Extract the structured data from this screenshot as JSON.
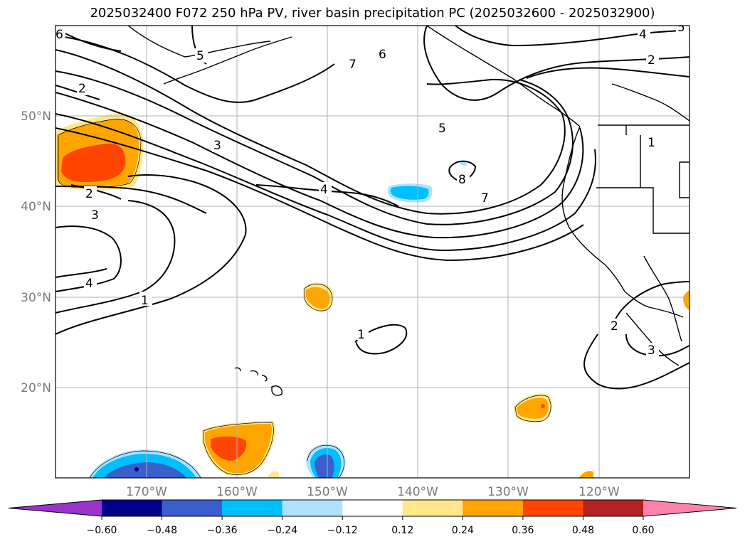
{
  "title": "2025032400 F072 250 hPa PV, river basin precipitation PC (2025032600 - 2025032900)",
  "lat_labels": [
    "50°N",
    "40°N",
    "30°N",
    "20°N"
  ],
  "lon_labels": [
    "170°W",
    "160°W",
    "150°W",
    "140°W",
    "130°W",
    "120°W"
  ],
  "colorbar": {
    "labels": [
      "−0.60",
      "−0.48",
      "−0.36",
      "−0.24",
      "−0.12",
      "0.12",
      "0.24",
      "0.36",
      "0.48",
      "0.60"
    ],
    "colors": [
      "#9933cc",
      "#00008b",
      "#3a5fcd",
      "#00bfff",
      "#b0e2ff",
      "#ffffff",
      "#ffe78a",
      "#ffa500",
      "#ff4500",
      "#b22222",
      "#ff82ab"
    ]
  },
  "contour_labels": {
    "c1": "1",
    "c2": "1",
    "c3": "2",
    "c4": "2",
    "c5": "2",
    "c6": "2",
    "c7": "3",
    "c8": "3",
    "c9": "3",
    "c10": "4",
    "c11": "4",
    "c12": "4",
    "c13": "5",
    "c14": "5",
    "c15": "5",
    "c16": "6",
    "c17": "6",
    "c18": "7",
    "c19": "7",
    "c20": "8",
    "c21": "1"
  }
}
